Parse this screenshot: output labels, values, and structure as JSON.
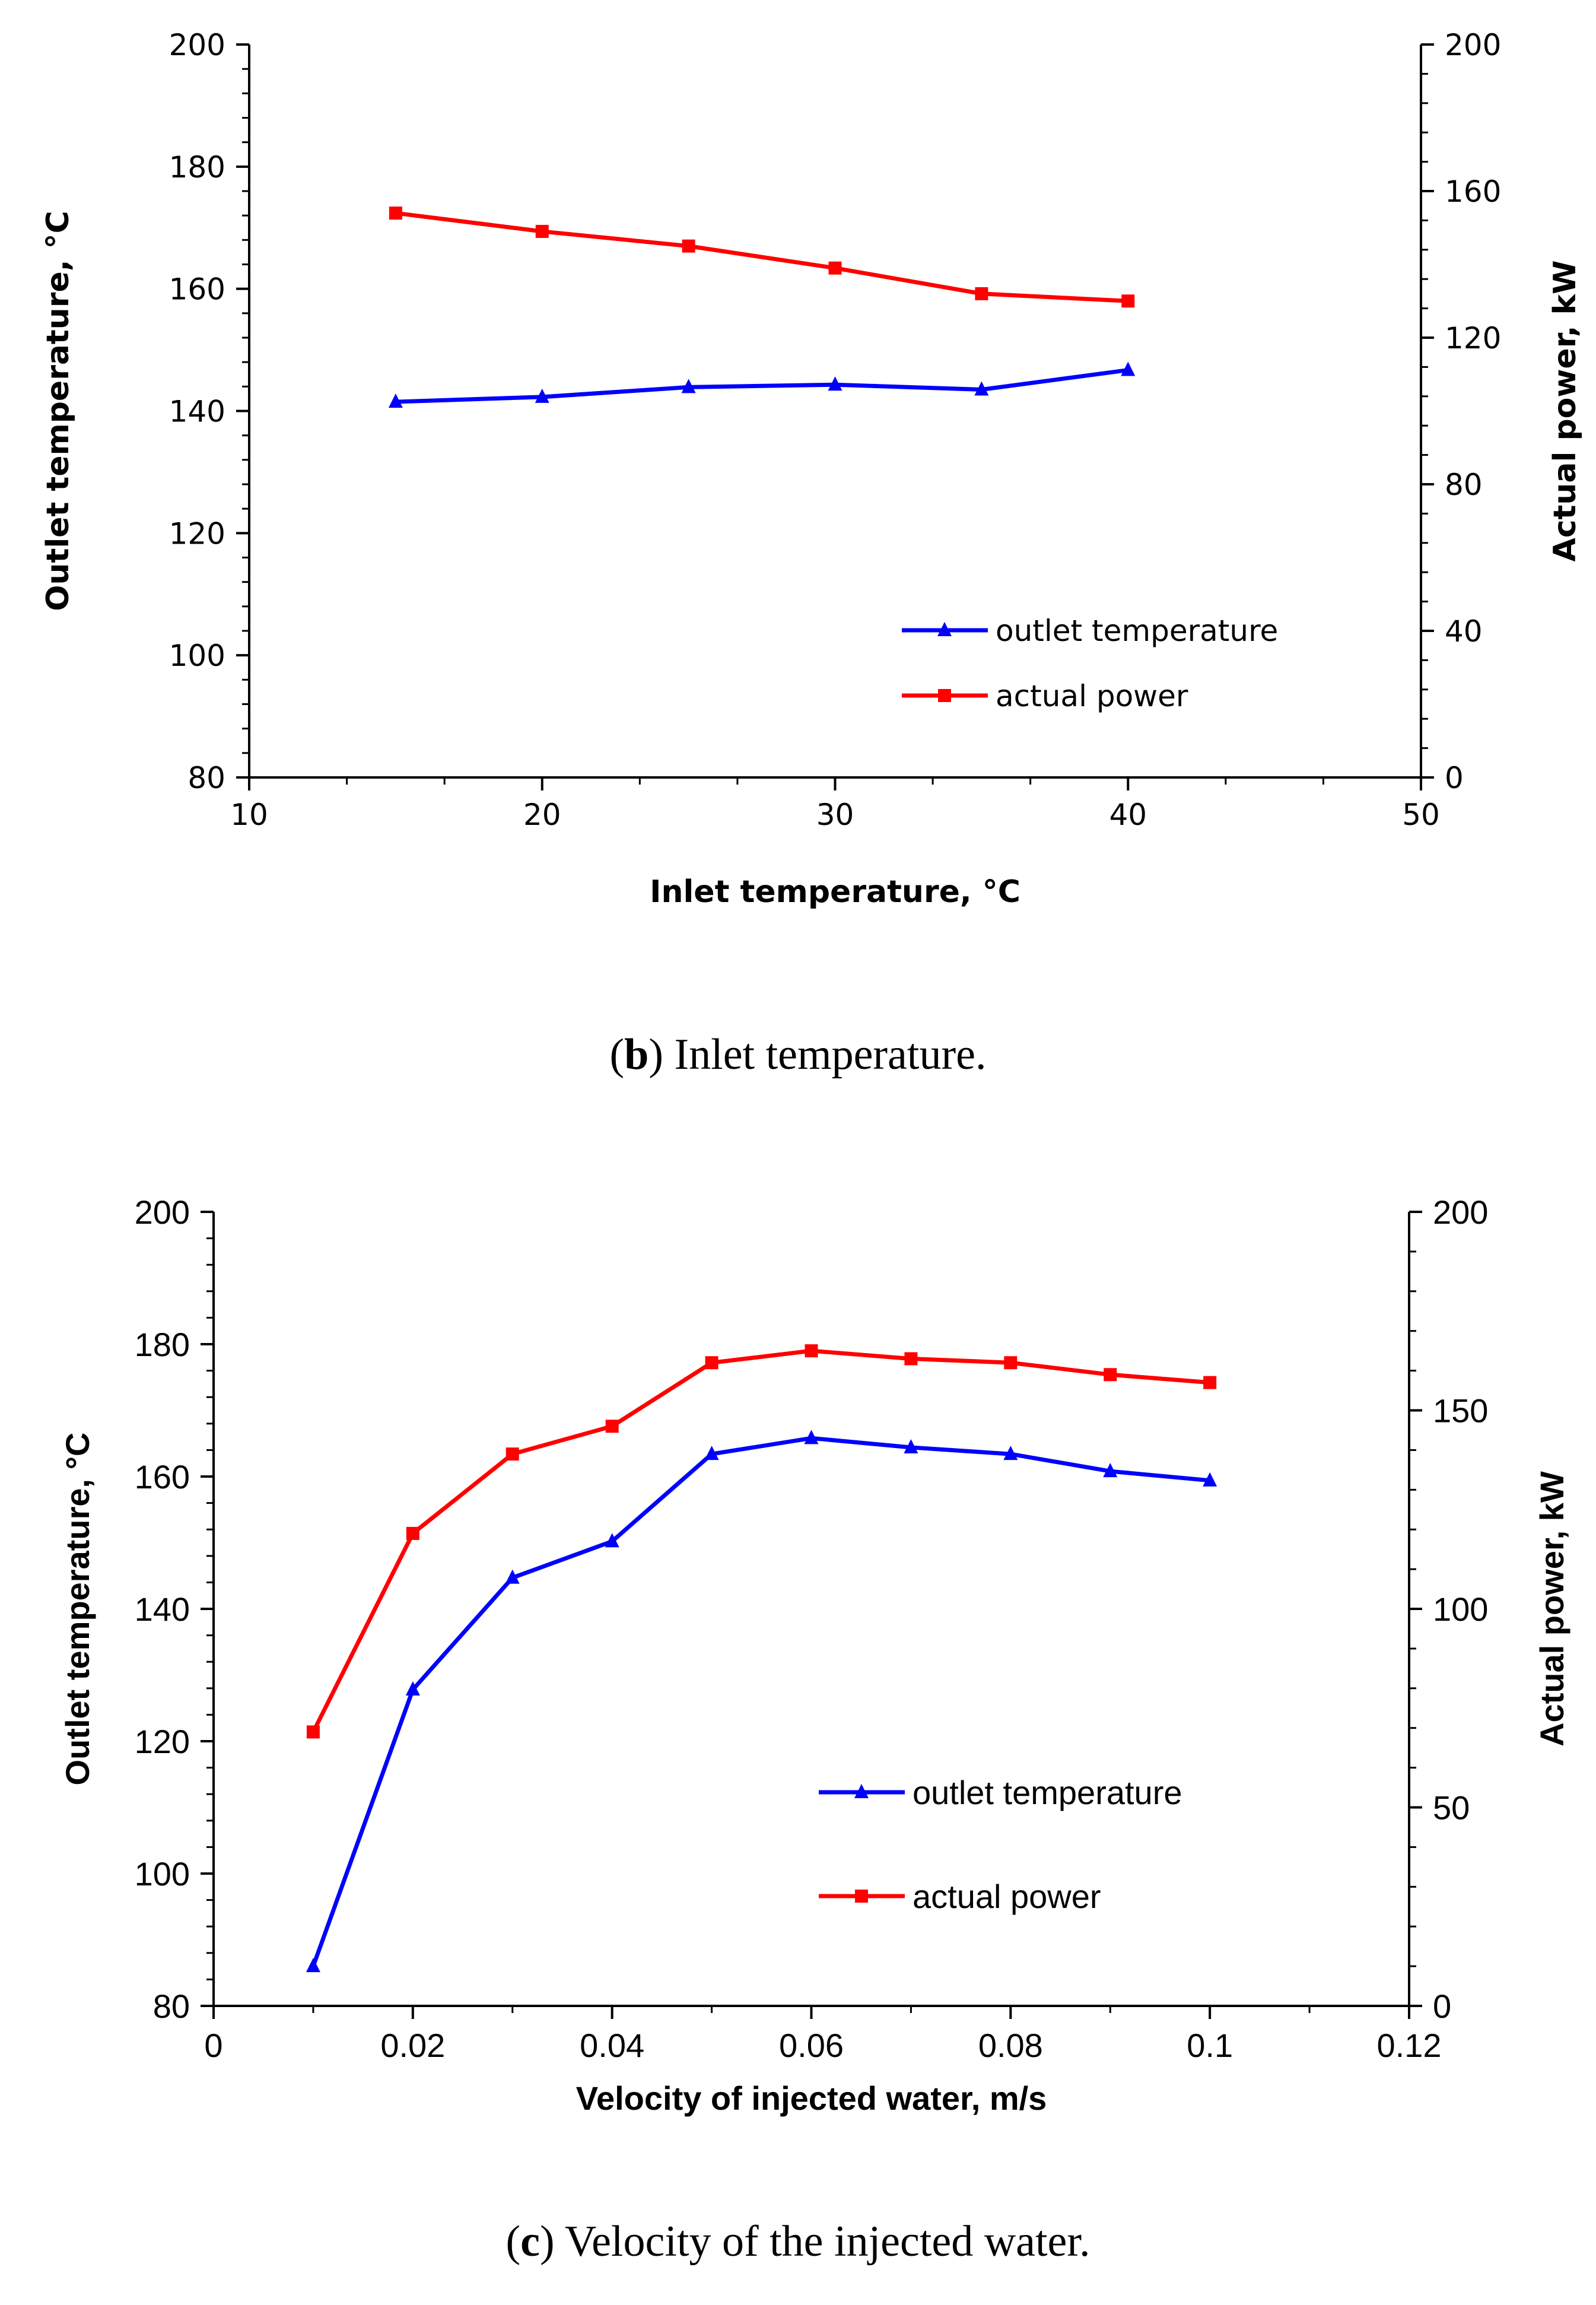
{
  "chart_data": [
    {
      "id": "b",
      "type": "line",
      "caption_label": "b",
      "caption_text": " Inlet temperature.",
      "xlabel": "Inlet temperature, °C",
      "ylabel_left": "Outlet temperature, °C",
      "ylabel_right": "Actual power, kW",
      "xlim": [
        10,
        50
      ],
      "xticks": [
        10,
        20,
        30,
        40,
        50
      ],
      "xtick_labels": [
        "10",
        "20",
        "30",
        "40",
        "50"
      ],
      "ylim_left": [
        80,
        200
      ],
      "yticks_left": [
        80,
        100,
        120,
        140,
        160,
        180,
        200
      ],
      "ytick_labels_left": [
        "80",
        "100",
        "120",
        "140",
        "160",
        "180",
        "200"
      ],
      "ylim_right": [
        0,
        200
      ],
      "yticks_right": [
        0,
        40,
        80,
        120,
        160,
        200
      ],
      "ytick_labels_right": [
        "0",
        "40",
        "80",
        "120",
        "160",
        "200"
      ],
      "x": [
        15,
        20,
        25,
        30,
        35,
        40
      ],
      "series": [
        {
          "name": "outlet temperature",
          "axis": "left",
          "color": "#0000ff",
          "marker": "triangle",
          "values": [
            141.5,
            142.3,
            143.9,
            144.3,
            143.5,
            146.7
          ]
        },
        {
          "name": "actual power",
          "axis": "right",
          "color": "#ff0000",
          "marker": "square",
          "values": [
            154,
            149,
            145,
            139,
            132,
            130
          ]
        }
      ],
      "legend": "right-bottom"
    },
    {
      "id": "c",
      "type": "line",
      "caption_label": "c",
      "caption_text": " Velocity of the injected water.",
      "xlabel": "Velocity of injected water, m/s",
      "ylabel_left": "Outlet temperature, °C",
      "ylabel_right": "Actual power, kW",
      "xlim": [
        0,
        0.12
      ],
      "xticks": [
        0,
        0.02,
        0.04,
        0.06,
        0.08,
        0.1,
        0.12
      ],
      "xtick_labels": [
        "0",
        "0.02",
        "0.04",
        "0.06",
        "0.08",
        "0.1",
        "0.12"
      ],
      "ylim_left": [
        80,
        200
      ],
      "yticks_left": [
        80,
        100,
        120,
        140,
        160,
        180,
        200
      ],
      "ytick_labels_left": [
        "80",
        "100",
        "120",
        "140",
        "160",
        "180",
        "200"
      ],
      "ylim_right": [
        0,
        200
      ],
      "yticks_right": [
        0,
        50,
        100,
        150,
        200
      ],
      "ytick_labels_right": [
        "0",
        "50",
        "100",
        "150",
        "200"
      ],
      "x": [
        0.01,
        0.02,
        0.03,
        0.04,
        0.05,
        0.06,
        0.07,
        0.08,
        0.09,
        0.1
      ],
      "series": [
        {
          "name": "outlet temperature",
          "axis": "left",
          "color": "#0000ff",
          "marker": "triangle",
          "values": [
            86,
            127.8,
            144.7,
            150.2,
            163.4,
            165.8,
            164.4,
            163.4,
            160.8,
            159.4
          ]
        },
        {
          "name": "actual power",
          "axis": "right",
          "color": "#ff0000",
          "marker": "square",
          "values": [
            69,
            119,
            139,
            146,
            162,
            165,
            163,
            162,
            159,
            157
          ]
        }
      ],
      "legend": "right-bottom"
    }
  ]
}
